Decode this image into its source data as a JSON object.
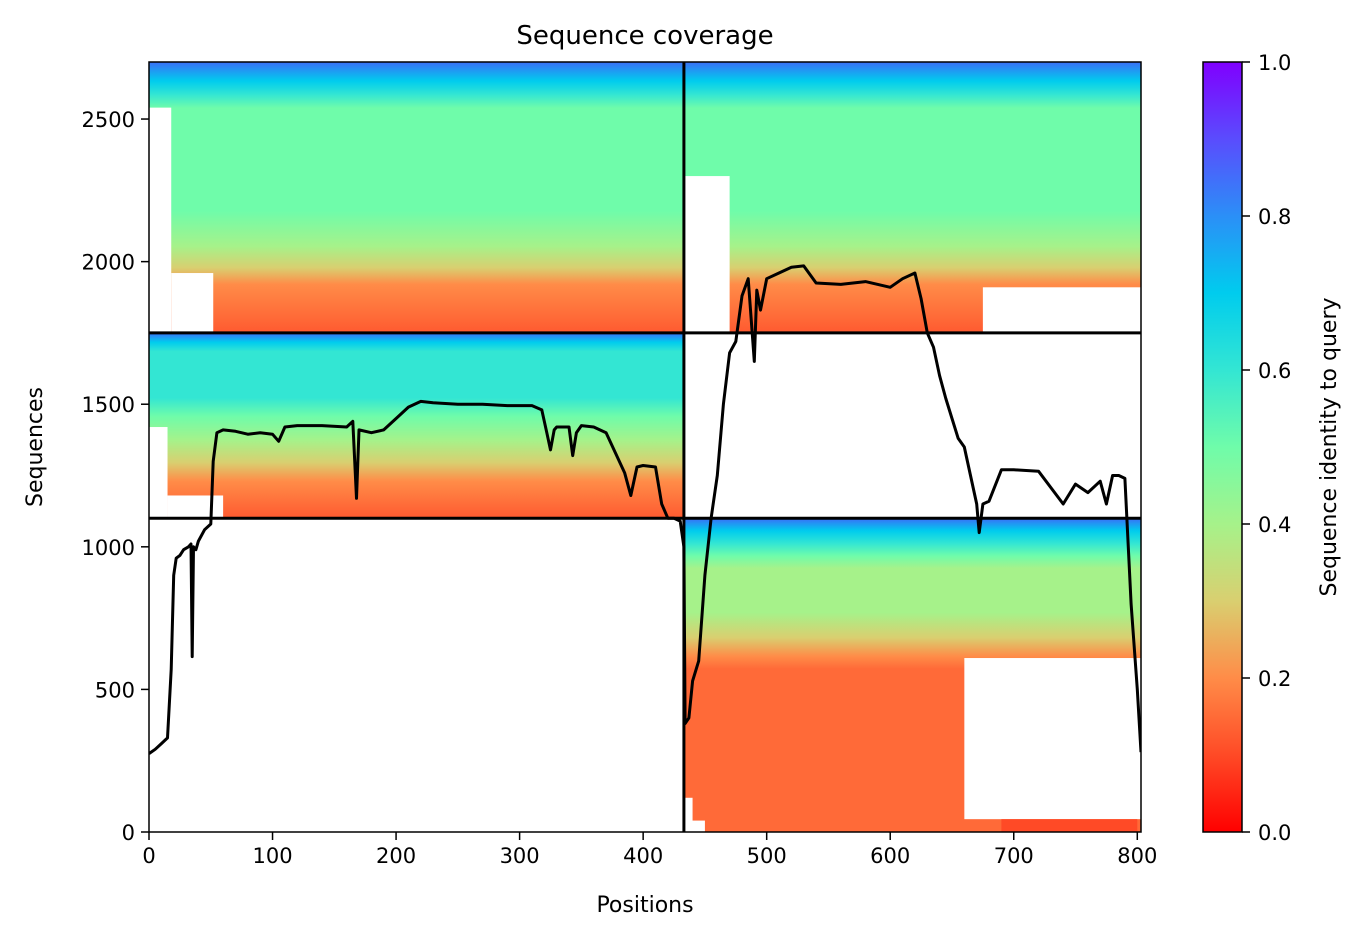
{
  "chart_data": {
    "type": "heatmap",
    "title": "Sequence coverage",
    "xlabel": "Positions",
    "ylabel": "Sequences",
    "xlim": [
      0,
      803
    ],
    "ylim": [
      0,
      2700
    ],
    "x_ticks": [
      0,
      100,
      200,
      300,
      400,
      500,
      600,
      700,
      800
    ],
    "y_ticks": [
      0,
      500,
      1000,
      1500,
      2000,
      2500
    ],
    "colorbar": {
      "label": "Sequence identity to query",
      "range": [
        0,
        1
      ],
      "ticks": [
        "0.0",
        "0.2",
        "0.4",
        "0.6",
        "0.8",
        "1.0"
      ],
      "colormap": "rainbow_r"
    },
    "divider_lines": {
      "vertical_x": 433,
      "horizontal_y": [
        1100,
        1750
      ]
    },
    "blocks": [
      {
        "name": "top-left",
        "x": [
          0,
          433
        ],
        "y": [
          1750,
          2700
        ],
        "identity_bottom": 0.15,
        "identity_top": 0.85
      },
      {
        "name": "mid-left",
        "x": [
          0,
          433
        ],
        "y": [
          1100,
          1750
        ],
        "identity_bottom": 0.12,
        "identity_top": 0.85
      },
      {
        "name": "top-right",
        "x": [
          433,
          803
        ],
        "y": [
          1750,
          2700
        ],
        "identity_bottom": 0.15,
        "identity_top": 0.85
      },
      {
        "name": "bottom-right",
        "x": [
          433,
          803
        ],
        "y": [
          0,
          1100
        ],
        "identity_bottom": 0.15,
        "identity_top": 0.85
      }
    ],
    "coverage_line": {
      "color": "#000000",
      "x": [
        0,
        5,
        10,
        15,
        18,
        20,
        22,
        25,
        28,
        32,
        34,
        35,
        36,
        38,
        40,
        45,
        50,
        52,
        55,
        60,
        70,
        80,
        90,
        100,
        105,
        110,
        120,
        140,
        160,
        165,
        168,
        170,
        180,
        190,
        200,
        210,
        220,
        230,
        250,
        270,
        290,
        310,
        318,
        322,
        325,
        328,
        330,
        340,
        343,
        346,
        350,
        360,
        370,
        385,
        390,
        395,
        400,
        410,
        415,
        420,
        425,
        430,
        433,
        434,
        437,
        440,
        445,
        450,
        455,
        460,
        465,
        470,
        475,
        480,
        485,
        490,
        492,
        495,
        500,
        510,
        520,
        530,
        540,
        560,
        580,
        600,
        610,
        620,
        625,
        630,
        635,
        640,
        645,
        650,
        655,
        660,
        665,
        670,
        672,
        675,
        680,
        690,
        700,
        720,
        740,
        750,
        760,
        770,
        775,
        780,
        785,
        790,
        795,
        800,
        803
      ],
      "y": [
        275,
        290,
        310,
        330,
        570,
        900,
        960,
        970,
        990,
        1000,
        1010,
        615,
        1000,
        990,
        1020,
        1060,
        1080,
        1300,
        1400,
        1410,
        1405,
        1395,
        1400,
        1395,
        1370,
        1420,
        1425,
        1425,
        1420,
        1440,
        1170,
        1410,
        1400,
        1410,
        1450,
        1490,
        1510,
        1505,
        1500,
        1500,
        1495,
        1495,
        1480,
        1400,
        1340,
        1410,
        1420,
        1420,
        1320,
        1400,
        1425,
        1420,
        1400,
        1260,
        1180,
        1280,
        1285,
        1280,
        1150,
        1100,
        1100,
        1090,
        1000,
        380,
        400,
        530,
        600,
        900,
        1100,
        1250,
        1500,
        1680,
        1720,
        1880,
        1940,
        1650,
        1900,
        1830,
        1940,
        1960,
        1980,
        1985,
        1925,
        1920,
        1930,
        1910,
        1940,
        1960,
        1870,
        1750,
        1700,
        1600,
        1520,
        1450,
        1380,
        1350,
        1250,
        1150,
        1050,
        1150,
        1160,
        1270,
        1270,
        1265,
        1150,
        1220,
        1190,
        1230,
        1150,
        1250,
        1250,
        1240,
        800,
        500,
        280
      ]
    }
  }
}
